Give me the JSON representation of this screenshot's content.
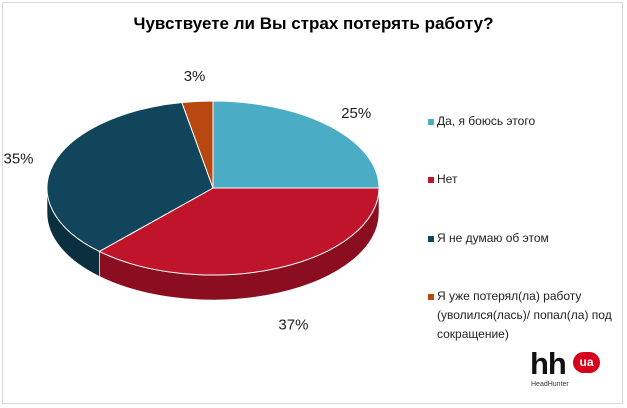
{
  "title": "Чувствуете ли Вы страх потерять работу?",
  "chart_data": {
    "type": "pie",
    "title": "Чувствуете ли Вы страх потерять работу?",
    "slices": [
      {
        "label": "Да, я боюсь этого",
        "value": 25,
        "value_label": "25%",
        "color": "#4bacc6",
        "side": "#2f7f95"
      },
      {
        "label": "Нет",
        "value": 37,
        "value_label": "37%",
        "color": "#c0142b",
        "side": "#8a0e1f"
      },
      {
        "label": "Я не думаю об этом",
        "value": 35,
        "value_label": "35%",
        "color": "#10455b",
        "side": "#0a2f3f"
      },
      {
        "label": "Я уже потерял(ла) работу (уволился(лась)/ попал(ла) под сокращение)",
        "value": 3,
        "value_label": "3%",
        "color": "#b8480f",
        "side": "#7f310a"
      }
    ],
    "legend_position": "right"
  },
  "legend": {
    "items": [
      {
        "label": "Да, я боюсь этого"
      },
      {
        "label": "Нет"
      },
      {
        "label": "Я не думаю об этом"
      },
      {
        "label": "Я уже потерял(ла) работу (уволился(лась)/ попал(ла) под сокращение)"
      }
    ]
  },
  "logo": {
    "text": "hh",
    "badge": "ua",
    "subtitle": "HeadHunter"
  }
}
